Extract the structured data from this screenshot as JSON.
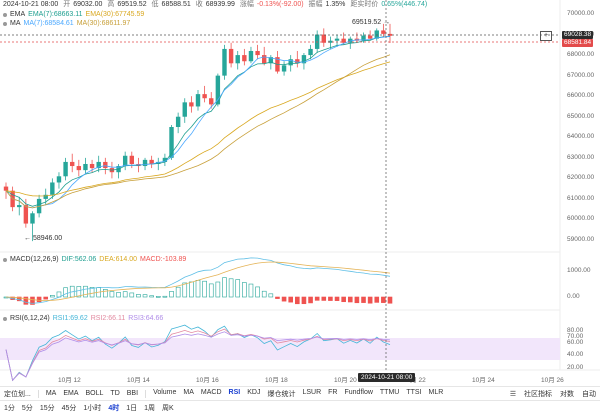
{
  "header": {
    "datetime": "2024-10-21 08:00",
    "open_label": "开",
    "open": "69032.00",
    "high_label": "高",
    "high": "69519.52",
    "low_label": "低",
    "low": "68588.51",
    "close_label": "收",
    "close": "68939.99",
    "change_label": "涨幅",
    "change": "-0.13%(-92.00)",
    "amplitude_label": "振幅",
    "amplitude": "1.35%",
    "realtime_label": "距实时价",
    "realtime": "0.65%(446.74)"
  },
  "legends": {
    "ema_row": {
      "name": "EMA",
      "ema7": "EMA(7):68663.11",
      "ema30": "EMA(30):67745.59"
    },
    "ma_row": {
      "name": "MA",
      "ma7": "MA(7):68584.61",
      "ma30": "MA(30):68611.97"
    },
    "macd_row": {
      "name": "MACD(12,26,9)",
      "dif": "DIF:562.06",
      "dea": "DEA:614.00",
      "macd": "MACD:-103.89"
    },
    "rsi_row": {
      "name": "RSI(6,12,24)",
      "rsi1": "RSI1:69.62",
      "rsi2": "RSI2:66.11",
      "rsi3": "RSI3:64.66"
    }
  },
  "price_axis": [
    "70000.00",
    "69000.00",
    "68000.00",
    "67000.00",
    "66000.00",
    "65000.00",
    "64000.00",
    "63000.00",
    "62000.00",
    "61000.00",
    "60000.00",
    "59000.00"
  ],
  "macd_axis": [
    "1000.00",
    "0.00"
  ],
  "rsi_axis": [
    "80.00",
    "70.00",
    "60.00",
    "40.00",
    "20.00"
  ],
  "time_axis": [
    "10月 12",
    "10月 14",
    "10月 16",
    "10月 18",
    "10月 20",
    "10月 22",
    "10月 24",
    "10月 26"
  ],
  "crosshair_time": "2024-10-21 08:00",
  "price_tags": {
    "cross": "69028.38",
    "last": "68581.84"
  },
  "annotations": {
    "high": "69519.52",
    "low": "58946.00"
  },
  "toolbar_main": {
    "layout_button": "定位划...",
    "items": [
      "MA",
      "EMA",
      "BOLL",
      "TD",
      "BBI"
    ],
    "indicators": [
      "Volume",
      "MA",
      "MACD",
      "RSI",
      "KDJ",
      "爆仓统计",
      "LSUR",
      "FR",
      "Fundflow",
      "TTMU",
      "TTSI",
      "MLR"
    ],
    "active_indicator": "RSI",
    "community": "社区指标",
    "compare": "对数",
    "auto": "自动"
  },
  "toolbar_intervals": {
    "items": [
      "1分",
      "5分",
      "15分",
      "45分",
      "1小时",
      "4时",
      "1日",
      "1周",
      "周K"
    ],
    "active": "4时"
  },
  "colors": {
    "up": "#26a69a",
    "down": "#ef5350",
    "ema7": "#1e9e8f",
    "ema30": "#d9a820",
    "ma7": "#4aa8ff",
    "ma30": "#c8a03a",
    "dif": "#5fbfe6",
    "dea": "#e4b356",
    "rsi1": "#45b6d8",
    "rsi2": "#e28aa0",
    "rsi3": "#b08de8",
    "rsi_band": "#f2e6fb",
    "last_tag": "#e34b4b",
    "cross_tag": "#2b2b2b"
  },
  "chart_data": {
    "type": "candlestick",
    "title": "",
    "xlabel": "",
    "ylabel": "",
    "ylim": [
      58500,
      70500
    ],
    "x_range": [
      "10月 11",
      "10月 27"
    ],
    "grid": false,
    "candles": [
      [
        61600,
        61800,
        61000,
        61400
      ],
      [
        61400,
        61600,
        60400,
        60600
      ],
      [
        60600,
        61100,
        60200,
        60700
      ],
      [
        60700,
        61000,
        59600,
        59800
      ],
      [
        59800,
        60400,
        58946,
        60300
      ],
      [
        60300,
        61200,
        60100,
        61000
      ],
      [
        61000,
        61500,
        60700,
        61200
      ],
      [
        61200,
        62000,
        61000,
        61800
      ],
      [
        61800,
        62300,
        61500,
        62100
      ],
      [
        62100,
        63000,
        61900,
        62800
      ],
      [
        62800,
        63200,
        62300,
        62600
      ],
      [
        62600,
        62900,
        62100,
        62400
      ],
      [
        62400,
        63000,
        62200,
        62700
      ],
      [
        62700,
        62900,
        62300,
        62500
      ],
      [
        62500,
        63100,
        62300,
        62800
      ],
      [
        62800,
        63000,
        62200,
        62500
      ],
      [
        62500,
        62800,
        62000,
        62300
      ],
      [
        62300,
        62700,
        62000,
        62600
      ],
      [
        62600,
        63300,
        62400,
        63100
      ],
      [
        63100,
        63300,
        62500,
        62700
      ],
      [
        62700,
        63000,
        62300,
        62600
      ],
      [
        62600,
        63000,
        62400,
        62900
      ],
      [
        62900,
        63100,
        62500,
        62700
      ],
      [
        62700,
        63000,
        62400,
        62800
      ],
      [
        62800,
        63200,
        62600,
        63000
      ],
      [
        63000,
        64600,
        62900,
        64500
      ],
      [
        64500,
        65200,
        64200,
        65000
      ],
      [
        65000,
        65900,
        64700,
        65700
      ],
      [
        65700,
        66000,
        65200,
        65500
      ],
      [
        65500,
        66300,
        65300,
        66100
      ],
      [
        66100,
        66500,
        65700,
        65900
      ],
      [
        65900,
        66200,
        65400,
        65600
      ],
      [
        65600,
        67100,
        65500,
        67000
      ],
      [
        67000,
        68500,
        66800,
        68300
      ],
      [
        68300,
        68600,
        67400,
        67600
      ],
      [
        67600,
        68200,
        67300,
        68000
      ],
      [
        68000,
        68300,
        67500,
        67700
      ],
      [
        67700,
        68400,
        67600,
        68200
      ],
      [
        68200,
        68500,
        67800,
        68000
      ],
      [
        68000,
        68400,
        67500,
        67600
      ],
      [
        67600,
        68000,
        67300,
        67900
      ],
      [
        67900,
        68200,
        67100,
        67200
      ],
      [
        67200,
        67700,
        67000,
        67500
      ],
      [
        67500,
        68000,
        67200,
        67800
      ],
      [
        67800,
        68200,
        67400,
        67600
      ],
      [
        67600,
        68100,
        67300,
        68000
      ],
      [
        68000,
        68500,
        67800,
        68300
      ],
      [
        68300,
        69200,
        68100,
        69000
      ],
      [
        69000,
        69300,
        68400,
        68600
      ],
      [
        68600,
        68900,
        68300,
        68700
      ],
      [
        68700,
        69000,
        68400,
        68800
      ],
      [
        68800,
        69100,
        68500,
        68600
      ],
      [
        68600,
        68900,
        68300,
        68800
      ],
      [
        68800,
        69100,
        68600,
        68700
      ],
      [
        68700,
        69100,
        68600,
        68950
      ],
      [
        68950,
        69200,
        68700,
        68800
      ],
      [
        68800,
        69300,
        68700,
        69200
      ],
      [
        69200,
        69519.52,
        68900,
        69032
      ],
      [
        69032,
        69519.52,
        68588.51,
        68939.99
      ]
    ]
  }
}
